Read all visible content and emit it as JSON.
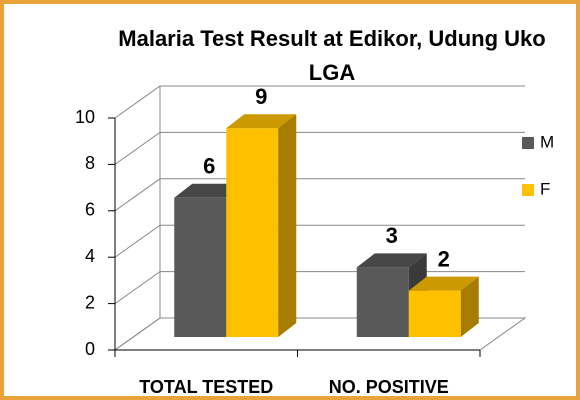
{
  "chart_data": {
    "type": "bar3d",
    "title_lines": [
      "Malaria Test Result at Edikor, Udung Uko",
      "LGA"
    ],
    "categories": [
      "TOTAL TESTED",
      "NO. POSITIVE"
    ],
    "series": [
      {
        "name": "M",
        "color": "#595959",
        "values": [
          6,
          3
        ]
      },
      {
        "name": "F",
        "color": "#ffc000",
        "values": [
          9,
          2
        ]
      }
    ],
    "ylim": [
      0,
      10
    ],
    "yticks": [
      0,
      2,
      4,
      6,
      8,
      10
    ],
    "grid": true,
    "legend": "right"
  }
}
